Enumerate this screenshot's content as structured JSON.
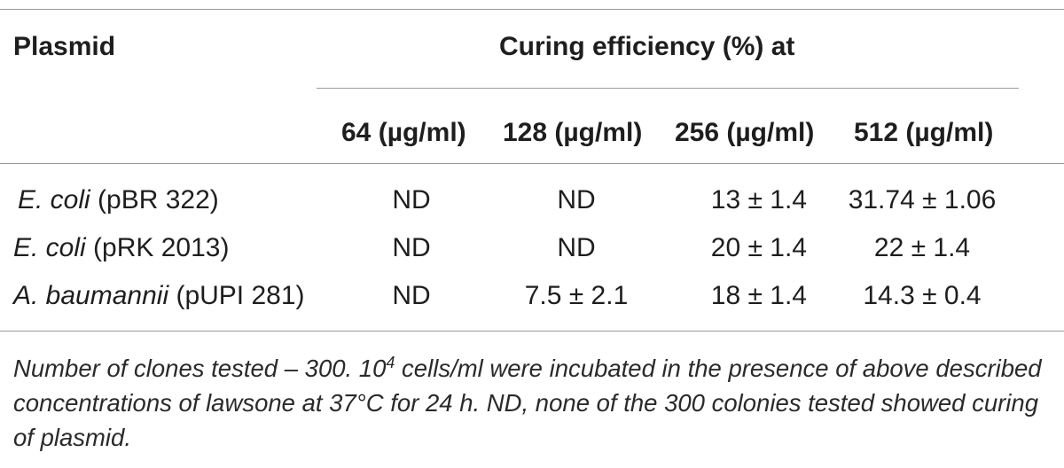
{
  "table": {
    "header": {
      "plasmid": "Plasmid",
      "curing": "Curing efficiency (%) at",
      "columns": [
        "64 (µg/ml)",
        "128 (µg/ml)",
        "256 (µg/ml)",
        "512 (µg/ml)"
      ]
    },
    "rows": [
      {
        "species": "E. coli",
        "plasmid": "(pBR 322)",
        "values": [
          "ND",
          "ND",
          "13 ± 1.4",
          "31.74 ± 1.06"
        ]
      },
      {
        "species": "E. coli",
        "plasmid": "(pRK 2013)",
        "values": [
          "ND",
          "ND",
          "20 ± 1.4",
          "22 ± 1.4"
        ]
      },
      {
        "species": "A. baumannii",
        "plasmid": "(pUPI 281)",
        "values": [
          "ND",
          "7.5 ± 2.1",
          "18 ± 1.4",
          "14.3 ± 0.4"
        ]
      }
    ]
  },
  "footnote": {
    "part1": "Number of clones tested – 300. 10",
    "exponent": "4",
    "part2": " cells/ml were incubated in the presence of above described concentrations of lawsone at 37°C for 24 h. ND, none of the 300 colonies tested showed curing of plasmid."
  }
}
